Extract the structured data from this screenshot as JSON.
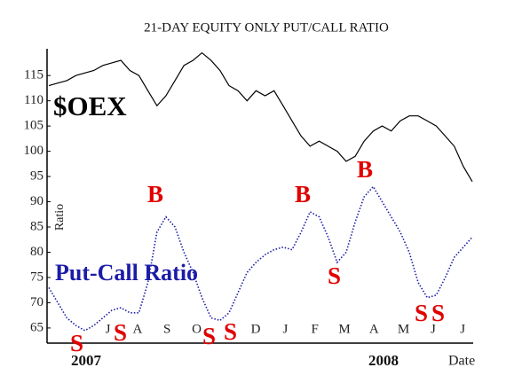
{
  "chart_data": {
    "type": "line",
    "title": "21-DAY EQUITY ONLY PUT/CALL RATIO",
    "y_label": "Ratio",
    "x_label": "Date",
    "month_ticks": [
      null,
      null,
      "J",
      "A",
      "S",
      "O",
      null,
      "D",
      "J",
      "F",
      "M",
      "A",
      "M",
      "J",
      "J"
    ],
    "year_labels": [
      "2007",
      "2008"
    ],
    "ylim": [
      62,
      120.3
    ],
    "yticks": [
      65,
      70,
      75,
      80,
      85,
      90,
      95,
      100,
      105,
      110,
      115
    ],
    "series": [
      {
        "name": "$OEX",
        "color": "#000000",
        "values": [
          113,
          113.5,
          114,
          115,
          115.5,
          116,
          117,
          117.5,
          118,
          116,
          115,
          112,
          109,
          111,
          114,
          117,
          118,
          119.5,
          118,
          116,
          113,
          112,
          110,
          112,
          111,
          112,
          109,
          106,
          103,
          101,
          102,
          101,
          100,
          98,
          99,
          102,
          104,
          105,
          104,
          106,
          107,
          107,
          106,
          105,
          103,
          101,
          97,
          94
        ]
      },
      {
        "name": "Put-Call Ratio",
        "color": "#1c1ca8",
        "values": [
          73,
          70,
          67,
          65.5,
          64.5,
          65.5,
          67,
          68.5,
          69,
          68,
          68,
          74,
          84,
          87,
          85,
          80,
          76,
          71,
          67,
          66.5,
          68,
          72,
          76,
          78,
          79.5,
          80.5,
          81,
          80.5,
          84,
          88,
          87,
          83,
          78,
          80,
          86,
          91,
          93,
          90,
          87,
          84,
          80,
          74,
          71,
          71.5,
          75,
          79,
          81,
          83
        ]
      }
    ],
    "annotations": [
      "S",
      "S",
      "B",
      "S",
      "S",
      "B",
      "S",
      "B",
      "S",
      "S"
    ]
  }
}
